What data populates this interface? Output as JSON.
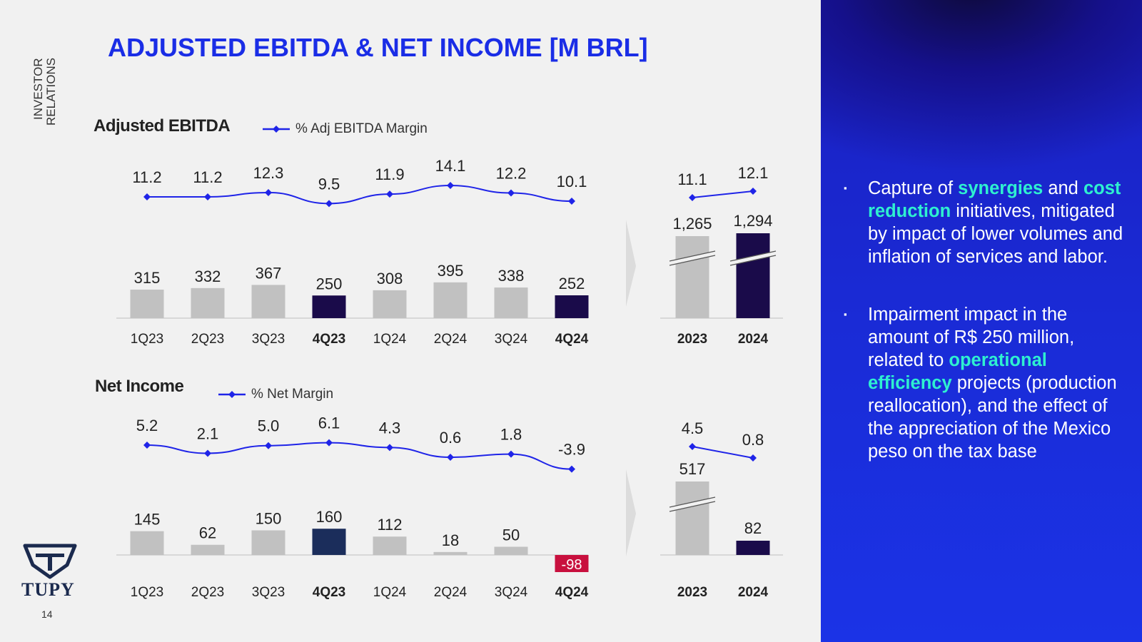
{
  "colors": {
    "accent": "#1a2de6",
    "bar_gray": "#c1c1c1",
    "bar_dark": "#1a0b4a",
    "bar_navy": "#1b2d5b",
    "bar_negative": "#c8103e",
    "line": "#1f24e8",
    "highlight": "#2ef0d0"
  },
  "header": {
    "side_label_line1": "INVESTOR",
    "side_label_line2": "RELATIONS",
    "title": "ADJUSTED EBITDA & NET INCOME [M BRL]"
  },
  "ebitda_section": {
    "title": "Adjusted EBITDA",
    "legend": "% Adj EBITDA Margin"
  },
  "net_income_section": {
    "title": "Net Income",
    "legend": "% Net Margin"
  },
  "chart_data": [
    {
      "type": "bar",
      "title": "Adjusted EBITDA",
      "categories": [
        "1Q23",
        "2Q23",
        "3Q23",
        "4Q23",
        "1Q24",
        "2Q24",
        "3Q24",
        "4Q24"
      ],
      "bold_categories": [
        "4Q23",
        "4Q24"
      ],
      "series": [
        {
          "name": "Adjusted EBITDA",
          "values": [
            315,
            332,
            367,
            250,
            308,
            395,
            338,
            252
          ]
        },
        {
          "name": "% Adj EBITDA Margin",
          "type": "line",
          "values": [
            11.2,
            11.2,
            12.3,
            9.5,
            11.9,
            14.1,
            12.2,
            10.1
          ]
        }
      ],
      "highlight_categories": [
        "4Q23",
        "4Q24"
      ],
      "ylabel": "M BRL"
    },
    {
      "type": "bar",
      "title": "Adjusted EBITDA (annual)",
      "categories": [
        "2023",
        "2024"
      ],
      "axis_break": true,
      "series": [
        {
          "name": "Adjusted EBITDA",
          "values": [
            1265,
            1294
          ],
          "labels": [
            "1,265",
            "1,294"
          ]
        },
        {
          "name": "% Adj EBITDA Margin",
          "type": "line",
          "values": [
            11.1,
            12.1
          ]
        }
      ]
    },
    {
      "type": "bar",
      "title": "Net Income",
      "categories": [
        "1Q23",
        "2Q23",
        "3Q23",
        "4Q23",
        "1Q24",
        "2Q24",
        "3Q24",
        "4Q24"
      ],
      "bold_categories": [
        "4Q23",
        "4Q24"
      ],
      "series": [
        {
          "name": "Net Income",
          "values": [
            145,
            62,
            150,
            160,
            112,
            18,
            50,
            -98
          ]
        },
        {
          "name": "% Net Margin",
          "type": "line",
          "values": [
            5.2,
            2.1,
            5.0,
            6.1,
            4.3,
            0.6,
            1.8,
            -3.9
          ]
        }
      ],
      "highlight_categories": [
        "4Q23"
      ],
      "negative_highlight": "4Q24",
      "ylabel": "M BRL"
    },
    {
      "type": "bar",
      "title": "Net Income (annual)",
      "categories": [
        "2023",
        "2024"
      ],
      "axis_break": true,
      "series": [
        {
          "name": "Net Income",
          "values": [
            517,
            82
          ]
        },
        {
          "name": "% Net Margin",
          "type": "line",
          "values": [
            4.5,
            0.8
          ]
        }
      ]
    }
  ],
  "bullets": [
    {
      "parts": [
        {
          "t": "Capture of "
        },
        {
          "t": "synergies",
          "hl": true
        },
        {
          "t": " and "
        },
        {
          "t": "cost reduction",
          "hl": true
        },
        {
          "t": " initiatives, mitigated by impact of lower volumes and inflation of services and labor."
        }
      ]
    },
    {
      "parts": [
        {
          "t": "Impairment impact in the amount of R$ 250 million, related to "
        },
        {
          "t": "operational efficiency",
          "hl": true
        },
        {
          "t": " projects (production reallocation), and the effect of the appreciation of the Mexico peso on the tax base"
        }
      ]
    }
  ],
  "bullet_marker": "▪",
  "logo": {
    "name": "TUPY",
    "icon": "tupy-shield-logo"
  },
  "page_number": "14"
}
